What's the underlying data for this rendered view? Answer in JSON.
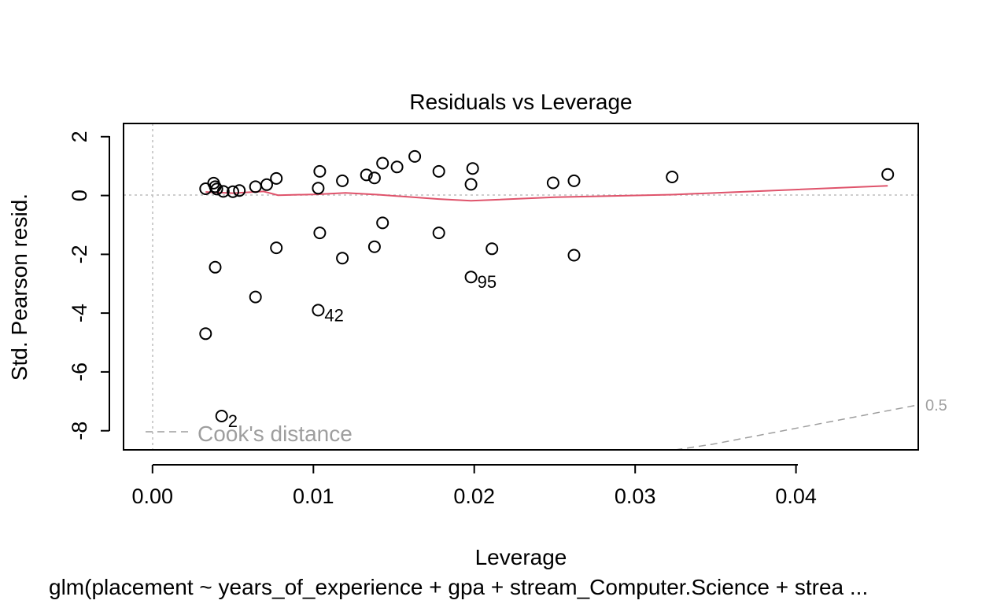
{
  "chart_data": {
    "type": "scatter",
    "title": "Residuals vs Leverage",
    "xlabel": "Leverage",
    "ylabel": "Std. Pearson resid.",
    "caption": "glm(placement ~ years_of_experience + gpa + stream_Computer.Science + strea ...",
    "xlim": [
      -0.0018,
      0.0476
    ],
    "ylim": [
      -8.65,
      2.45
    ],
    "x_ticks": [
      0,
      0.01,
      0.02,
      0.03,
      0.04
    ],
    "x_tick_labels": [
      "0.00",
      "0.01",
      "0.02",
      "0.03",
      "0.04"
    ],
    "y_ticks": [
      2,
      0,
      -2,
      -4,
      -6,
      -8
    ],
    "y_tick_labels": [
      "2",
      "0",
      "-2",
      "-4",
      "-6",
      "-8"
    ],
    "grid": false,
    "reference_lines": {
      "horizontal_y": 0,
      "vertical_x": 0
    },
    "points": [
      {
        "x": 0.0033,
        "y": 0.23
      },
      {
        "x": 0.0038,
        "y": 0.42
      },
      {
        "x": 0.0039,
        "y": 0.3
      },
      {
        "x": 0.004,
        "y": 0.22
      },
      {
        "x": 0.0044,
        "y": 0.14
      },
      {
        "x": 0.005,
        "y": 0.13
      },
      {
        "x": 0.0054,
        "y": 0.17
      },
      {
        "x": 0.0064,
        "y": 0.3
      },
      {
        "x": 0.0071,
        "y": 0.37
      },
      {
        "x": 0.0077,
        "y": 0.58
      },
      {
        "x": 0.0103,
        "y": 0.25
      },
      {
        "x": 0.0104,
        "y": 0.82
      },
      {
        "x": 0.0118,
        "y": 0.5
      },
      {
        "x": 0.0133,
        "y": 0.7
      },
      {
        "x": 0.0138,
        "y": 0.6
      },
      {
        "x": 0.0143,
        "y": 1.1
      },
      {
        "x": 0.0152,
        "y": 0.97
      },
      {
        "x": 0.0163,
        "y": 1.33
      },
      {
        "x": 0.0178,
        "y": 0.82
      },
      {
        "x": 0.0198,
        "y": 0.38
      },
      {
        "x": 0.0199,
        "y": 0.92
      },
      {
        "x": 0.0249,
        "y": 0.43
      },
      {
        "x": 0.0262,
        "y": 0.5
      },
      {
        "x": 0.0323,
        "y": 0.63
      },
      {
        "x": 0.0457,
        "y": 0.72
      },
      {
        "x": 0.0039,
        "y": -2.44
      },
      {
        "x": 0.0077,
        "y": -1.78
      },
      {
        "x": 0.0104,
        "y": -1.27
      },
      {
        "x": 0.0118,
        "y": -2.13
      },
      {
        "x": 0.0138,
        "y": -1.74
      },
      {
        "x": 0.0143,
        "y": -0.93
      },
      {
        "x": 0.0178,
        "y": -1.27
      },
      {
        "x": 0.0211,
        "y": -1.81
      },
      {
        "x": 0.0262,
        "y": -2.03
      },
      {
        "x": 0.0064,
        "y": -3.45
      },
      {
        "x": 0.0033,
        "y": -4.7
      },
      {
        "x": 0.0198,
        "y": -2.77,
        "label": "95"
      },
      {
        "x": 0.0103,
        "y": -3.9,
        "label": "42"
      },
      {
        "x": 0.0043,
        "y": -7.5,
        "label": "2"
      }
    ],
    "smoother": [
      [
        0.0033,
        0.12
      ],
      [
        0.005,
        0.08
      ],
      [
        0.0069,
        0.14
      ],
      [
        0.0078,
        0.01
      ],
      [
        0.0102,
        0.04
      ],
      [
        0.012,
        0.09
      ],
      [
        0.014,
        0.03
      ],
      [
        0.0178,
        -0.12
      ],
      [
        0.0198,
        -0.18
      ],
      [
        0.025,
        -0.06
      ],
      [
        0.0323,
        0.03
      ],
      [
        0.0457,
        0.33
      ]
    ],
    "cooks_contour": {
      "level_label": "0.5",
      "points": [
        [
          0.0325,
          -8.65
        ],
        [
          0.0348,
          -8.46
        ],
        [
          0.0476,
          -7.12
        ]
      ]
    },
    "legend": {
      "label": "Cook's distance",
      "position": "bottom-left"
    },
    "colors": {
      "points": "#000000",
      "smoother": "#df536b",
      "reference": "#bebebe",
      "cooks": "#9e9e9e",
      "axes": "#000000"
    }
  }
}
